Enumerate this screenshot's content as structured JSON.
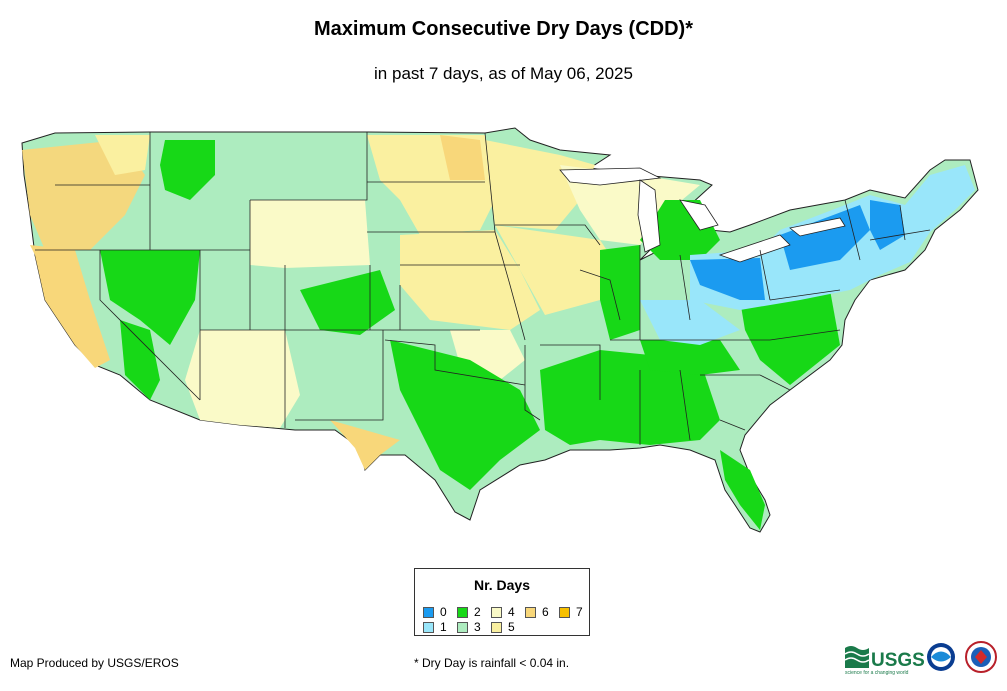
{
  "title": "Maximum Consecutive Dry Days (CDD)*",
  "subtitle": "in past 7 days, as of May 06, 2025",
  "legend": {
    "title": "Nr. Days",
    "items": [
      {
        "label": "0",
        "color": "#1b9bf0"
      },
      {
        "label": "1",
        "color": "#99e6fa"
      },
      {
        "label": "2",
        "color": "#17d817"
      },
      {
        "label": "3",
        "color": "#adecbf"
      },
      {
        "label": "4",
        "color": "#fafac8"
      },
      {
        "label": "5",
        "color": "#faf0a0"
      },
      {
        "label": "6",
        "color": "#f8d77a"
      },
      {
        "label": "7",
        "color": "#f7c000"
      }
    ]
  },
  "credit": "Map Produced by USGS/EROS",
  "footnote": "* Dry Day is rainfall < 0.04 in.",
  "logos": {
    "usgs_text": "USGS",
    "usgs_tagline": "science for a changing world"
  }
}
